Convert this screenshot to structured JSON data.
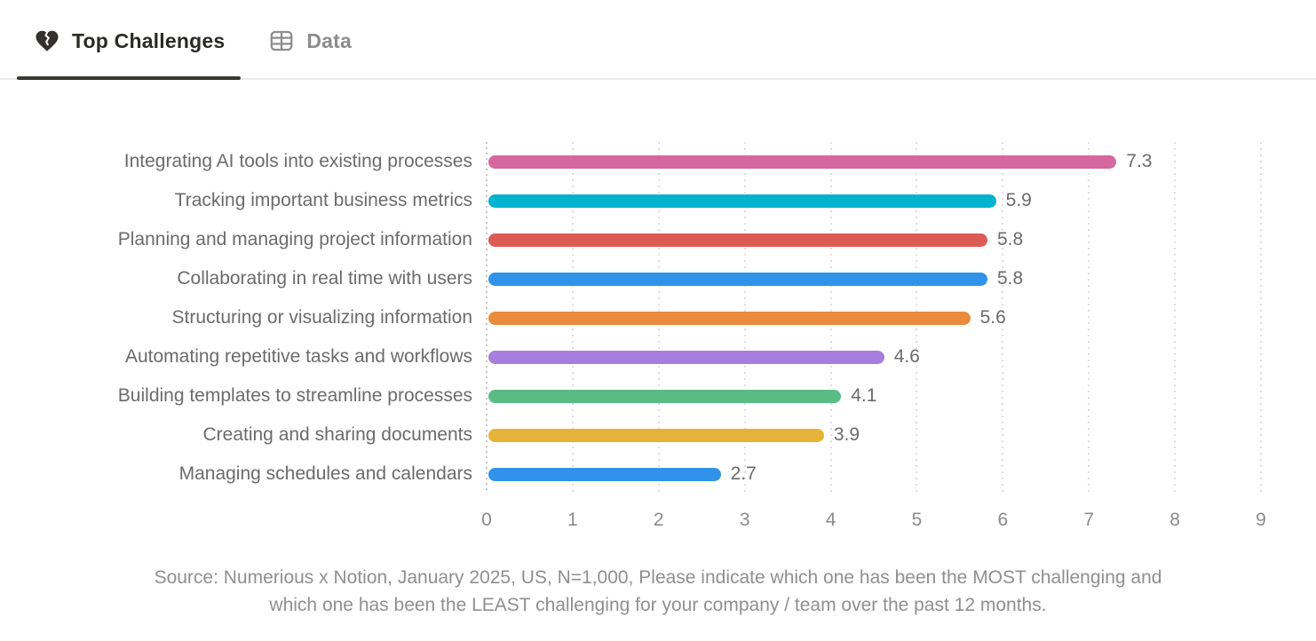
{
  "tabs": [
    {
      "label": "Top Challenges",
      "icon": "broken-heart-icon",
      "active": true
    },
    {
      "label": "Data",
      "icon": "table-icon",
      "active": false
    }
  ],
  "chart_data": {
    "type": "bar",
    "orientation": "horizontal",
    "title": "",
    "xlabel": "",
    "ylabel": "",
    "categories": [
      "Integrating AI tools into existing processes",
      "Tracking important business metrics",
      "Planning and managing project information",
      "Collaborating in real time with users",
      "Structuring or visualizing information",
      "Automating repetitive tasks and workflows",
      "Building templates to streamline processes",
      "Creating and sharing documents",
      "Managing schedules and calendars"
    ],
    "values": [
      7.3,
      5.9,
      5.8,
      5.8,
      5.6,
      4.6,
      4.1,
      3.9,
      2.7
    ],
    "value_labels": [
      "7.3",
      "5.9",
      "5.8",
      "5.8",
      "5.6",
      "4.6",
      "4.1",
      "3.9",
      "2.7"
    ],
    "bar_colors": [
      "#d6679f",
      "#00b3ce",
      "#dc5b55",
      "#3093e9",
      "#ea8b3d",
      "#a77ddd",
      "#5bbb85",
      "#e5b338",
      "#3093e9"
    ],
    "xlim": [
      0,
      9
    ],
    "x_ticks": [
      "0",
      "1",
      "2",
      "3",
      "4",
      "5",
      "6",
      "7",
      "8",
      "9"
    ],
    "grid": "dotted-vertical",
    "legend": "none"
  },
  "source": {
    "line1": "Source: Numerious x Notion, January 2025, US, N=1,000, Please indicate which one has been the MOST challenging and",
    "line2": "which one has been the LEAST challenging for your company /  team over the past 12 months."
  },
  "colors": {
    "active_tab_text": "#2b2a27",
    "active_tab_underline": "#3a3832",
    "inactive_tab_text": "#8c8c8c",
    "tabbar_divider": "#ececec",
    "category_label": "#6b6b6b",
    "value_label": "#6b6b6b",
    "tick_label": "#8b8b8b",
    "source_text": "#8f8f8f",
    "gridline": "#dddddd",
    "axis_line": "#c6c6c6",
    "background": "#ffffff"
  }
}
